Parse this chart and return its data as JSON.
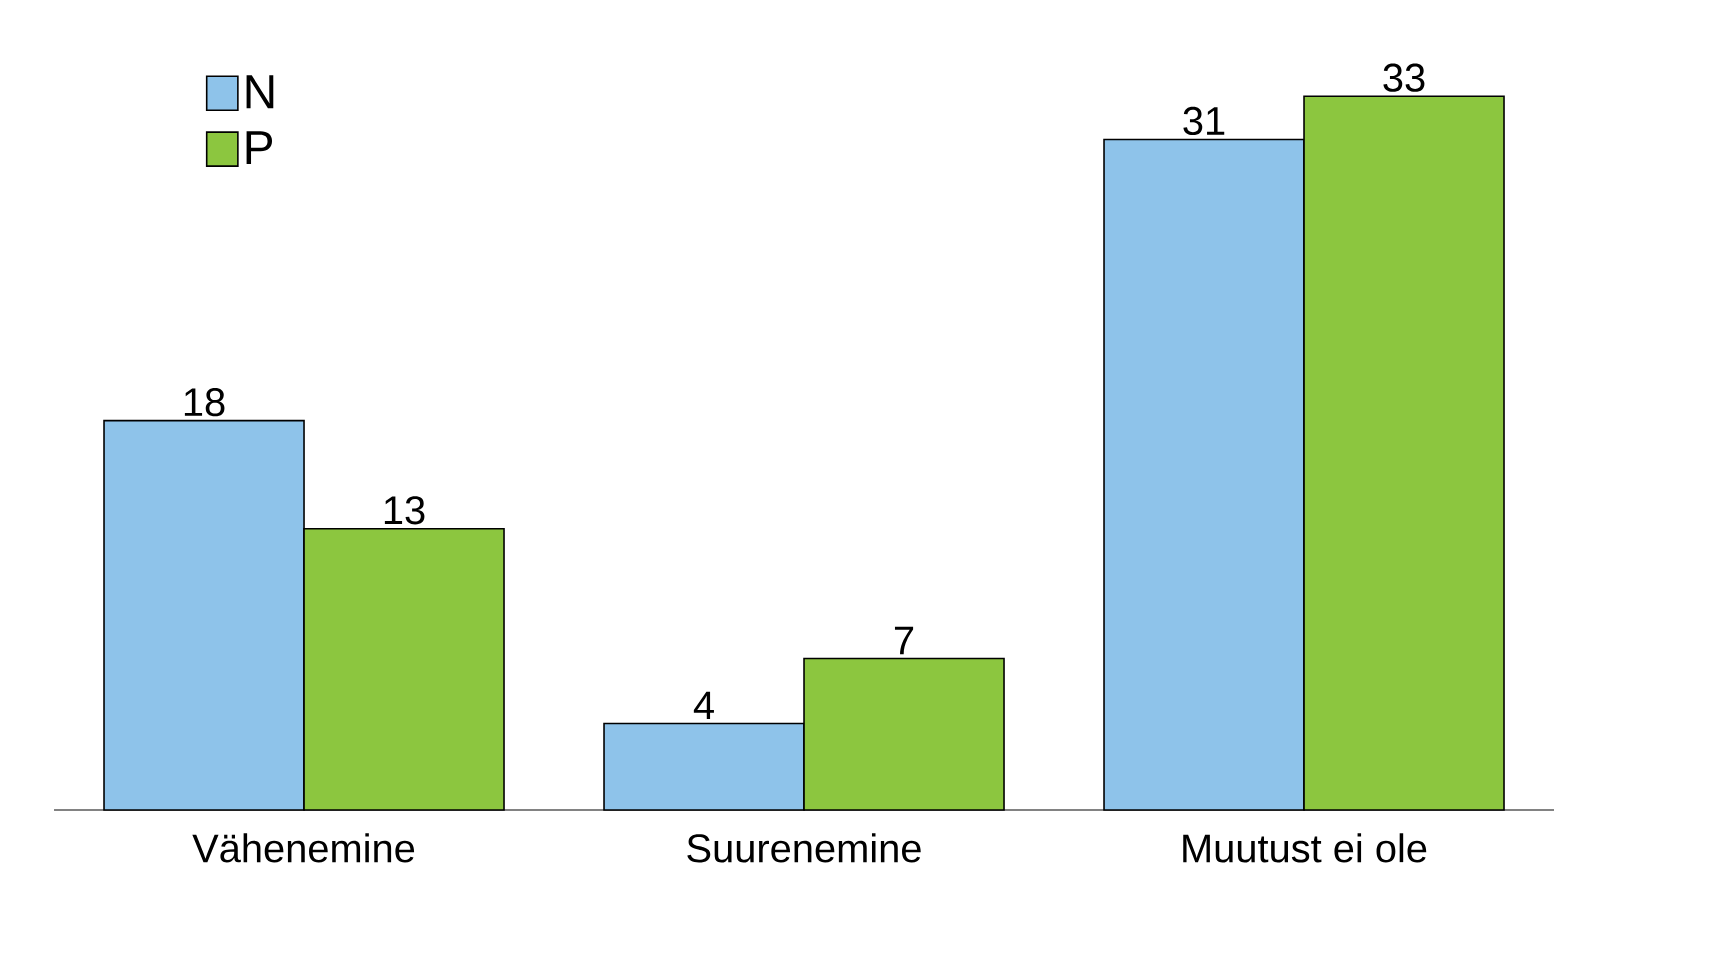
{
  "chart_data": {
    "type": "bar",
    "categories": [
      "Vähenemine",
      "Suurenemine",
      "Muutust ei ole"
    ],
    "series": [
      {
        "name": "N",
        "color": "#8ec3ea",
        "values": [
          18,
          4,
          31
        ]
      },
      {
        "name": "P",
        "color": "#8cc63f",
        "values": [
          13,
          7,
          33
        ]
      }
    ],
    "data_labels": true,
    "legend": "top left"
  }
}
